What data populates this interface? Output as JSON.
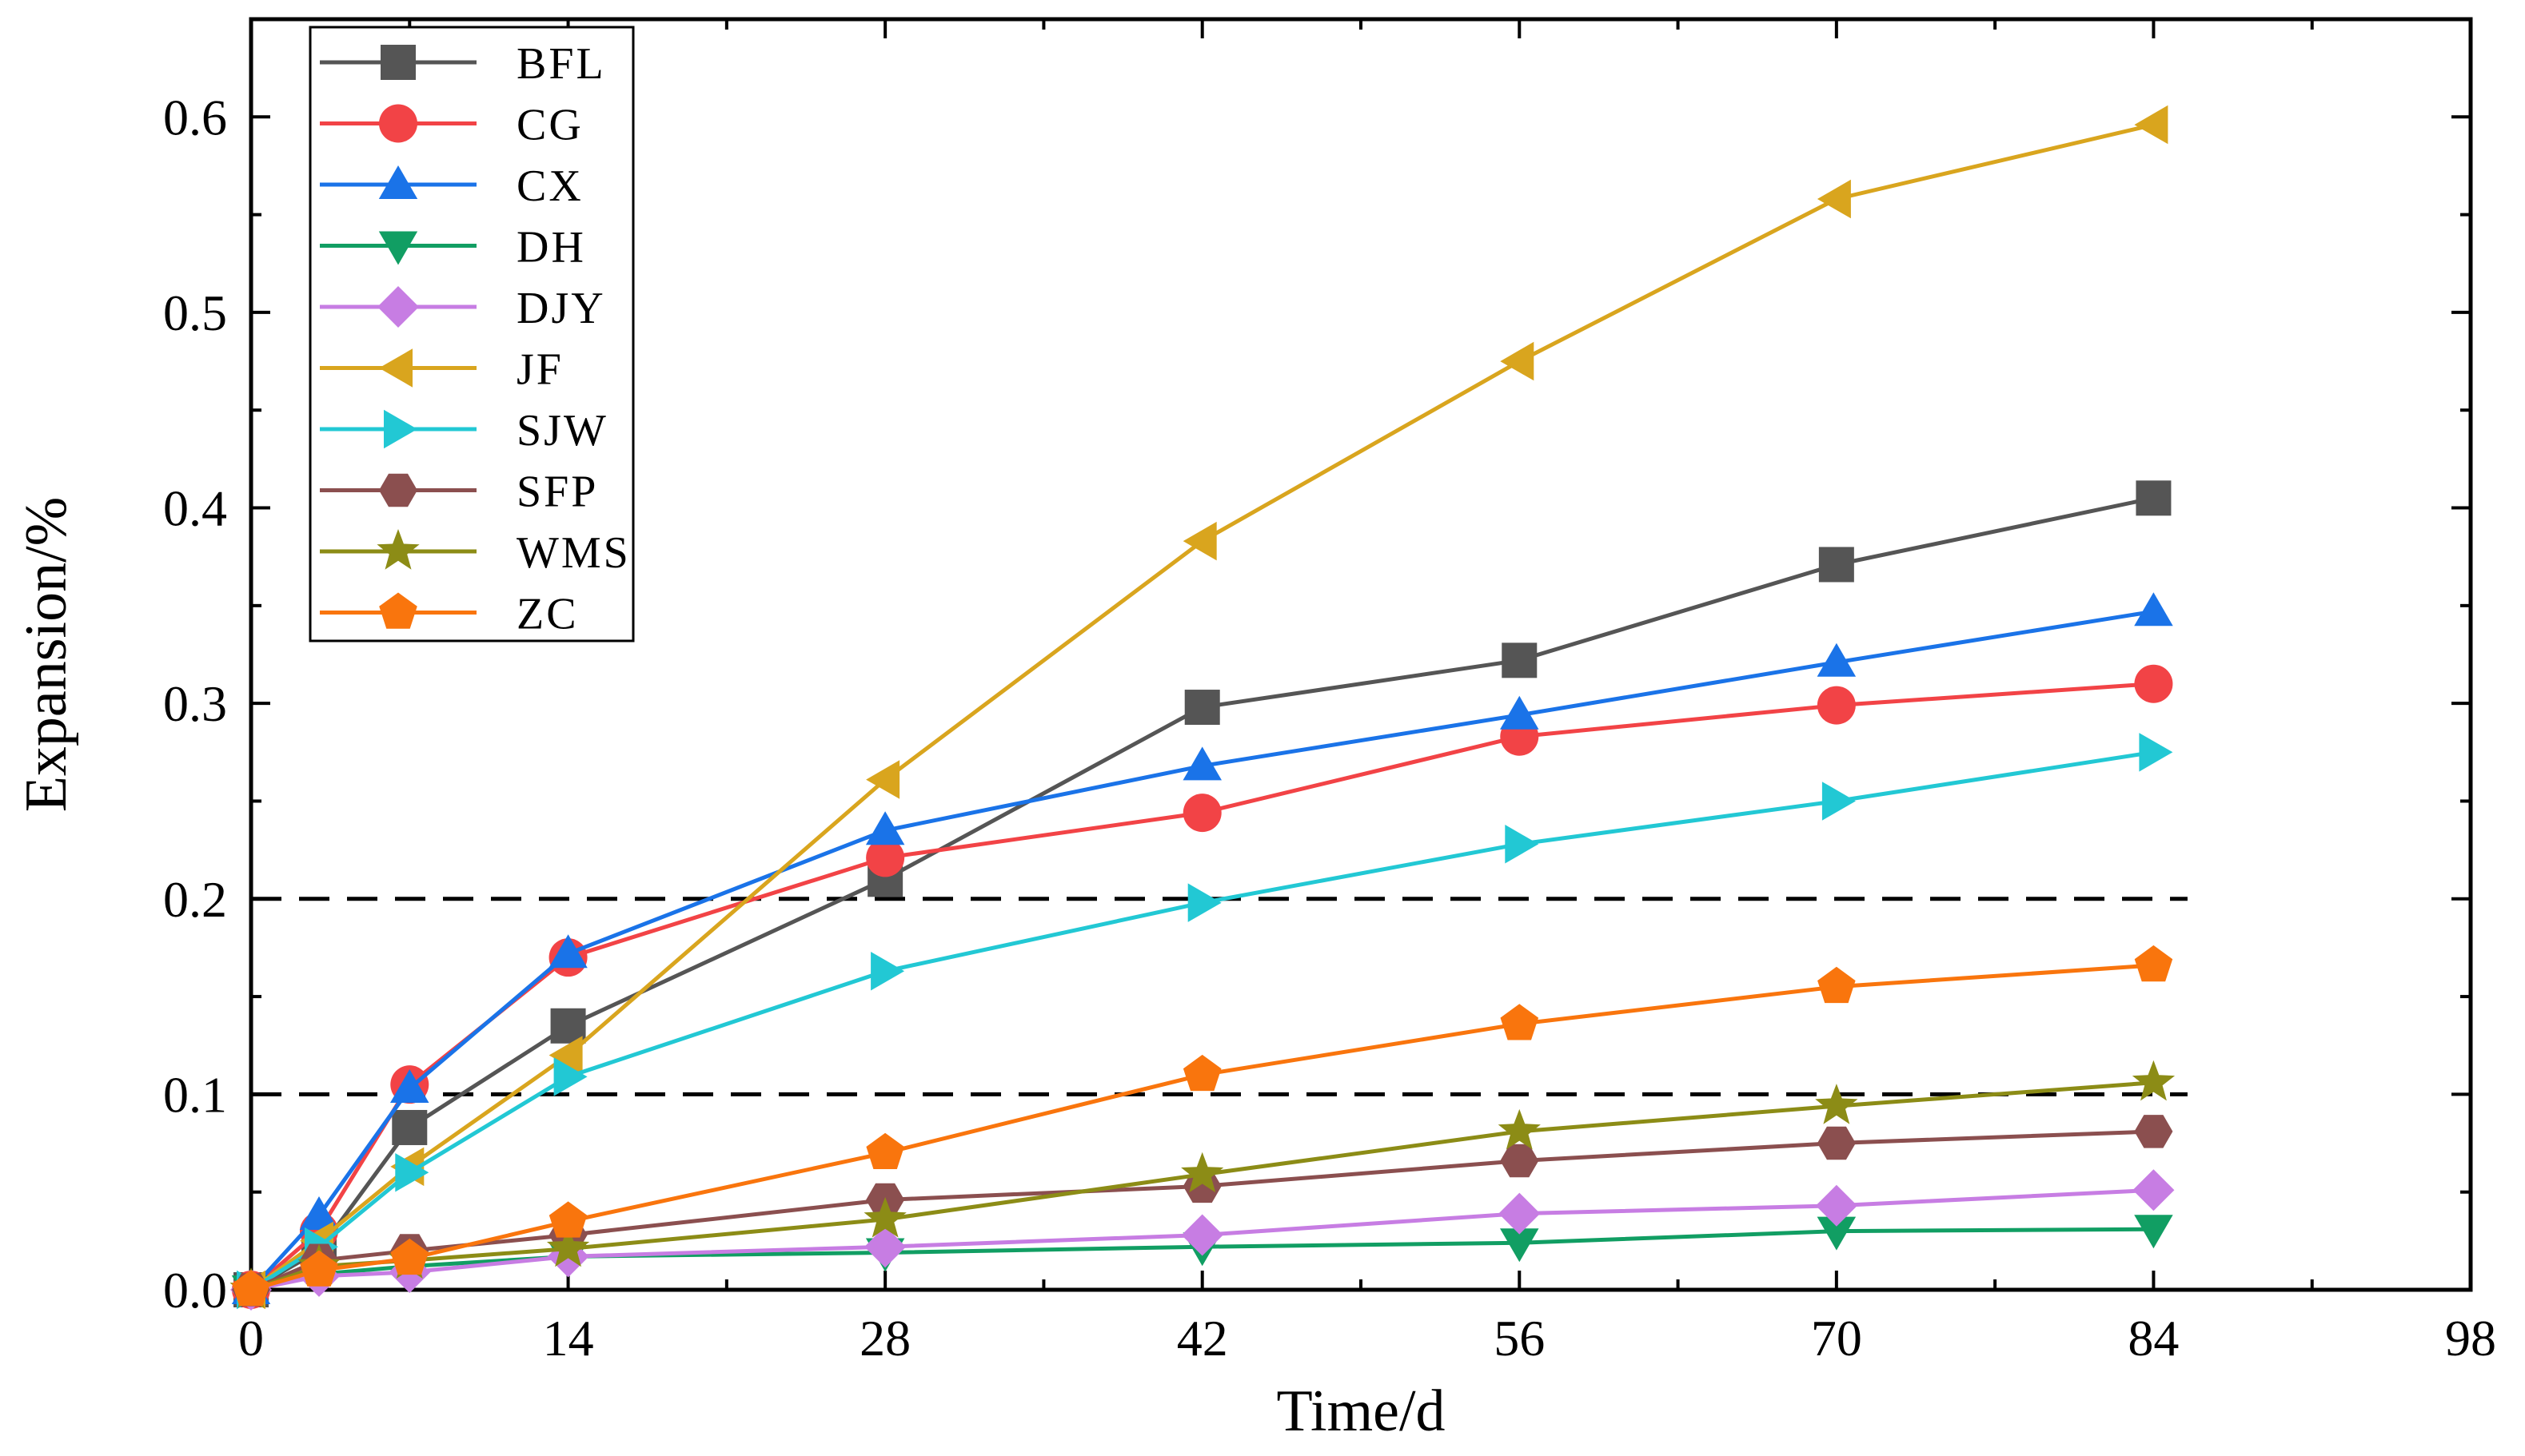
{
  "chart_data": {
    "type": "line",
    "title": "",
    "xlabel": "Time/d",
    "ylabel": "Expansion/%",
    "xlim": [
      0,
      98
    ],
    "ylim": [
      0,
      0.65
    ],
    "x_ticks": [
      "0",
      "14",
      "28",
      "42",
      "56",
      "70",
      "84",
      "98"
    ],
    "y_ticks": [
      "0.0",
      "0.1",
      "0.2",
      "0.3",
      "0.4",
      "0.5",
      "0.6"
    ],
    "x": [
      0,
      3,
      7,
      14,
      28,
      42,
      56,
      70,
      84
    ],
    "reference_lines": [
      0.1,
      0.2
    ],
    "legend_position": "top-left",
    "grid": false,
    "series": [
      {
        "name": "BFL",
        "color": "#555555",
        "marker": "square",
        "values": [
          0,
          0.02,
          0.083,
          0.135,
          0.21,
          0.298,
          0.322,
          0.371,
          0.405
        ]
      },
      {
        "name": "CG",
        "color": "#f24346",
        "marker": "circle",
        "values": [
          0,
          0.03,
          0.105,
          0.17,
          0.221,
          0.244,
          0.283,
          0.299,
          0.31
        ]
      },
      {
        "name": "CX",
        "color": "#1a73e8",
        "marker": "triangle-up",
        "values": [
          0,
          0.038,
          0.103,
          0.172,
          0.235,
          0.268,
          0.294,
          0.321,
          0.347
        ]
      },
      {
        "name": "DH",
        "color": "#119e63",
        "marker": "triangle-down",
        "values": [
          0,
          0.008,
          0.012,
          0.017,
          0.019,
          0.022,
          0.024,
          0.03,
          0.031
        ]
      },
      {
        "name": "DJY",
        "color": "#c77de3",
        "marker": "diamond",
        "values": [
          0,
          0.007,
          0.009,
          0.017,
          0.022,
          0.028,
          0.039,
          0.043,
          0.051
        ]
      },
      {
        "name": "JF",
        "color": "#d9a51e",
        "marker": "triangle-left",
        "values": [
          0,
          0.025,
          0.063,
          0.12,
          0.261,
          0.383,
          0.475,
          0.558,
          0.596
        ]
      },
      {
        "name": "SJW",
        "color": "#22c8d4",
        "marker": "triangle-right",
        "values": [
          0,
          0.022,
          0.06,
          0.109,
          0.163,
          0.198,
          0.228,
          0.25,
          0.275
        ]
      },
      {
        "name": "SFP",
        "color": "#8b4f4f",
        "marker": "hexagon",
        "values": [
          0,
          0.015,
          0.02,
          0.028,
          0.046,
          0.053,
          0.066,
          0.075,
          0.081
        ]
      },
      {
        "name": "WMS",
        "color": "#8c8c16",
        "marker": "star",
        "values": [
          0,
          0.012,
          0.015,
          0.021,
          0.036,
          0.059,
          0.081,
          0.094,
          0.106
        ]
      },
      {
        "name": "ZC",
        "color": "#f9750d",
        "marker": "pentagon",
        "values": [
          0,
          0.01,
          0.016,
          0.035,
          0.07,
          0.11,
          0.136,
          0.155,
          0.166
        ]
      }
    ]
  }
}
